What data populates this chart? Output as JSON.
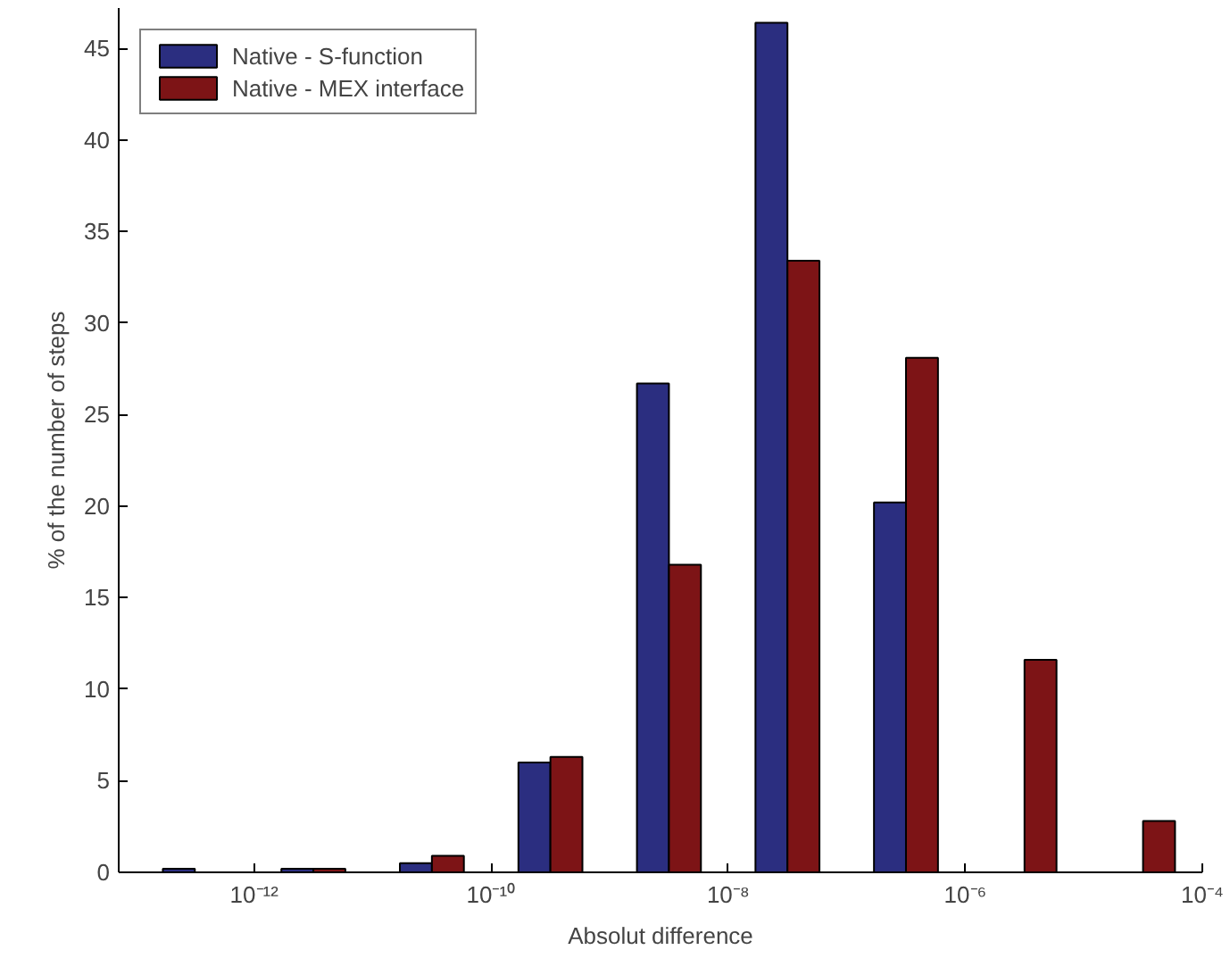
{
  "chart_data": {
    "type": "bar",
    "xlabel": "Absolut difference",
    "ylabel": "% of the number of steps",
    "x": [
      3.16e-13,
      3.16e-12,
      3.16e-11,
      3.16e-10,
      3.16e-09,
      3.16e-08,
      3.16e-07,
      3.16e-06,
      3.16e-05
    ],
    "series": [
      {
        "name": "Native - S-function",
        "color": "#2b2e80",
        "values": [
          0.2,
          0.2,
          0.5,
          6.0,
          26.7,
          46.4,
          20.2,
          null,
          null
        ]
      },
      {
        "name": "Native - MEX interface",
        "color": "#7d1416",
        "values": [
          null,
          0.2,
          0.9,
          6.3,
          16.8,
          33.4,
          28.1,
          11.6,
          2.8
        ]
      }
    ],
    "log": "x",
    "xlim": [
      7.2e-14,
      0.0001
    ],
    "xticks": [
      {
        "value": 1e-12,
        "label": "10⁻¹²"
      },
      {
        "value": 1e-10,
        "label": "10⁻¹⁰"
      },
      {
        "value": 1e-08,
        "label": "10⁻⁸"
      },
      {
        "value": 1e-06,
        "label": "10⁻⁶"
      },
      {
        "value": 0.0001,
        "label": "10⁻⁴"
      }
    ],
    "ylim": [
      0,
      47.2
    ],
    "yticks": [
      0,
      5,
      10,
      15,
      20,
      25,
      30,
      35,
      40,
      45
    ],
    "grid": false,
    "legend": "top left"
  }
}
